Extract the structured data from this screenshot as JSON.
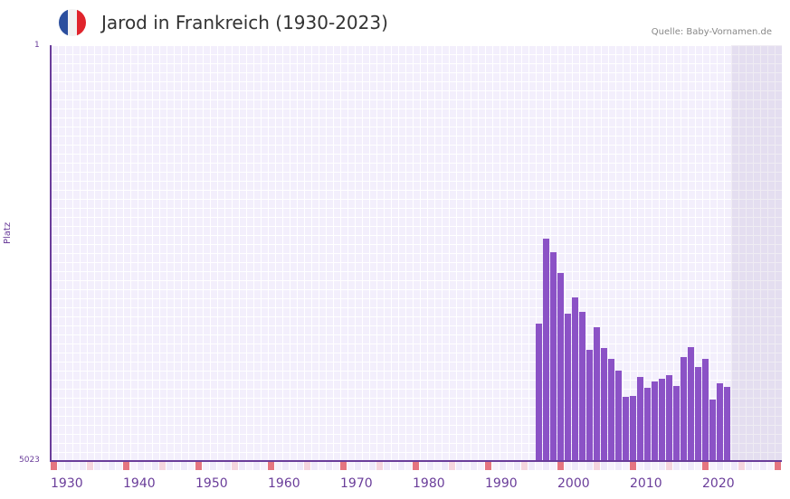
{
  "header": {
    "title": "Jarod in Frankreich (1930-2023)",
    "source": "Quelle: Baby-Vornamen.de",
    "flag_colors": [
      "#2c4f9e",
      "#f2f2f2",
      "#e0242c"
    ]
  },
  "colors": {
    "bar": "#8b52c6",
    "axis": "#6a3d9a",
    "decade_mark": "#e57580",
    "half_mark": "#f5d5de"
  },
  "chart_data": {
    "type": "bar",
    "title": "Jarod in Frankreich (1930-2023)",
    "xlabel": "",
    "ylabel": "Platz",
    "y_axis_inverted": true,
    "ylim": [
      5023,
      1
    ],
    "y_ticks": [
      "1",
      "5023"
    ],
    "x_ticks": [
      "1930",
      "1940",
      "1950",
      "1960",
      "1970",
      "1980",
      "1990",
      "2000",
      "2010",
      "2020"
    ],
    "x_range": [
      1930,
      2030
    ],
    "categories": [
      1997,
      1998,
      1999,
      2000,
      2001,
      2002,
      2003,
      2004,
      2005,
      2006,
      2007,
      2008,
      2009,
      2010,
      2011,
      2012,
      2013,
      2014,
      2015,
      2016,
      2017,
      2018,
      2019,
      2020,
      2021,
      2022,
      2023
    ],
    "values": [
      3362,
      2335,
      2498,
      2750,
      3241,
      3045,
      3220,
      3679,
      3406,
      3657,
      3788,
      3930,
      4247,
      4236,
      4007,
      4138,
      4061,
      4029,
      3985,
      4116,
      3766,
      3646,
      3887,
      3788,
      4280,
      4083,
      4127
    ],
    "grid": true,
    "legend": null
  },
  "axes": {
    "y_top": "1",
    "y_bottom": "5023",
    "y_title": "Platz"
  }
}
